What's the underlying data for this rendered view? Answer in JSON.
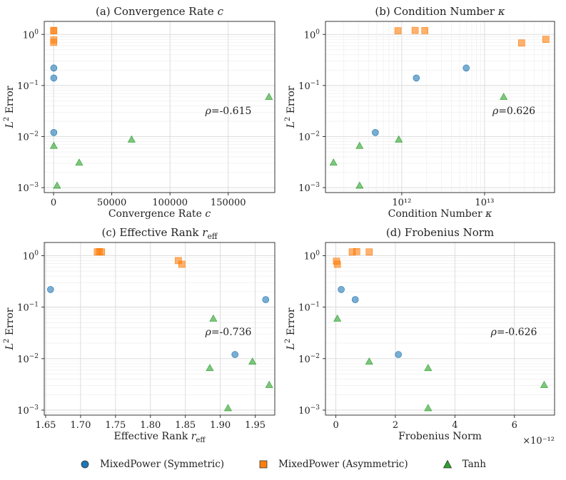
{
  "figure_data": {
    "ylabel": "L² Error",
    "colors": {
      "symmetric": "#1f77b4",
      "asymmetric": "#ff7f0e",
      "tanh": "#2ca02c"
    },
    "legend": {
      "symmetric": "MixedPower (Symmetric)",
      "asymmetric": "MixedPower (Asymmetric)",
      "tanh": "Tanh"
    }
  },
  "chart_data": [
    {
      "type": "scatter",
      "title": "(a) Convergence Rate c",
      "xlabel": "Convergence Rate c",
      "ylabel": "L² Error",
      "xscale": "linear",
      "yscale": "log",
      "xlim": [
        -8000,
        190000
      ],
      "ylim": [
        0.0008,
        1.8
      ],
      "xticks": [
        0,
        50000,
        100000,
        150000
      ],
      "xtick_labels": [
        "0",
        "50000",
        "100000",
        "150000"
      ],
      "correlation": "ρ=-0.615",
      "series": [
        {
          "name": "MixedPower (Symmetric)",
          "marker": "circle",
          "x": [
            200,
            200,
            200
          ],
          "y": [
            0.22,
            0.14,
            0.012
          ]
        },
        {
          "name": "MixedPower (Asymmetric)",
          "marker": "square",
          "x": [
            100,
            150,
            150,
            100
          ],
          "y": [
            1.18,
            1.2,
            0.78,
            0.7
          ]
        },
        {
          "name": "Tanh",
          "marker": "triangle",
          "x": [
            185000,
            67000,
            200,
            22000,
            3000
          ],
          "y": [
            0.06,
            0.0088,
            0.0066,
            0.0031,
            0.0011
          ]
        }
      ]
    },
    {
      "type": "scatter",
      "title": "(b) Condition Number κ",
      "xlabel": "Condition Number κ",
      "ylabel": "L² Error",
      "xscale": "log",
      "yscale": "log",
      "xlim": [
        120000000000.0,
        70000000000000.0
      ],
      "ylim": [
        0.0008,
        1.8
      ],
      "xticks": [
        1000000000000.0,
        10000000000000.0
      ],
      "xtick_labels": [
        "10¹²",
        "10¹³"
      ],
      "correlation": "ρ=0.626",
      "series": [
        {
          "name": "MixedPower (Symmetric)",
          "marker": "circle",
          "x": [
            6000000000000.0,
            1500000000000.0,
            480000000000.0
          ],
          "y": [
            0.22,
            0.14,
            0.012
          ]
        },
        {
          "name": "MixedPower (Asymmetric)",
          "marker": "square",
          "x": [
            900000000000.0,
            1450000000000.0,
            1900000000000.0,
            55000000000000.0,
            28000000000000.0
          ],
          "y": [
            1.18,
            1.2,
            1.19,
            0.8,
            0.68
          ]
        },
        {
          "name": "Tanh",
          "marker": "triangle",
          "x": [
            17000000000000.0,
            920000000000.0,
            310000000000.0,
            150000000000.0,
            310000000000.0
          ],
          "y": [
            0.06,
            0.0088,
            0.0066,
            0.0031,
            0.0011
          ]
        }
      ]
    },
    {
      "type": "scatter",
      "title": "(c) Effective Rank r_eff",
      "xlabel": "Effective Rank r_eff",
      "ylabel": "L² Error",
      "xscale": "linear",
      "yscale": "log",
      "xlim": [
        1.648,
        1.978
      ],
      "ylim": [
        0.0008,
        1.8
      ],
      "xticks": [
        1.65,
        1.7,
        1.75,
        1.8,
        1.85,
        1.9,
        1.95
      ],
      "xtick_labels": [
        "1.65",
        "1.70",
        "1.75",
        "1.80",
        "1.85",
        "1.90",
        "1.95"
      ],
      "correlation": "ρ=-0.736",
      "series": [
        {
          "name": "MixedPower (Symmetric)",
          "marker": "circle",
          "x": [
            1.657,
            1.965,
            1.921
          ],
          "y": [
            0.22,
            0.14,
            0.012
          ]
        },
        {
          "name": "MixedPower (Asymmetric)",
          "marker": "square",
          "x": [
            1.724,
            1.73,
            1.727,
            1.84,
            1.845
          ],
          "y": [
            1.18,
            1.18,
            1.2,
            0.8,
            0.68
          ]
        },
        {
          "name": "Tanh",
          "marker": "triangle",
          "x": [
            1.89,
            1.946,
            1.885,
            1.97,
            1.911
          ],
          "y": [
            0.06,
            0.0088,
            0.0066,
            0.0031,
            0.0011
          ]
        }
      ]
    },
    {
      "type": "scatter",
      "title": "(d) Frobenius Norm",
      "xlabel": "Frobenius Norm",
      "ylabel": "L² Error",
      "xscale": "linear",
      "yscale": "log",
      "xlim": [
        -0.35,
        7.35
      ],
      "ylim": [
        0.0008,
        1.8
      ],
      "xticks": [
        0,
        2,
        4,
        6
      ],
      "xtick_labels": [
        "0",
        "2",
        "4",
        "6"
      ],
      "offset_label": "×10⁻¹²",
      "correlation": "ρ=-0.626",
      "series": [
        {
          "name": "MixedPower (Symmetric)",
          "marker": "circle",
          "x": [
            0.18,
            0.65,
            2.1
          ],
          "y": [
            0.22,
            0.14,
            0.012
          ]
        },
        {
          "name": "MixedPower (Asymmetric)",
          "marker": "square",
          "x": [
            0.55,
            0.7,
            1.12,
            0.02,
            0.05
          ],
          "y": [
            1.18,
            1.2,
            1.18,
            0.78,
            0.68
          ]
        },
        {
          "name": "Tanh",
          "marker": "triangle",
          "x": [
            0.05,
            1.12,
            3.1,
            7.0,
            3.1
          ],
          "y": [
            0.06,
            0.0088,
            0.0066,
            0.0031,
            0.0011
          ]
        }
      ]
    }
  ]
}
